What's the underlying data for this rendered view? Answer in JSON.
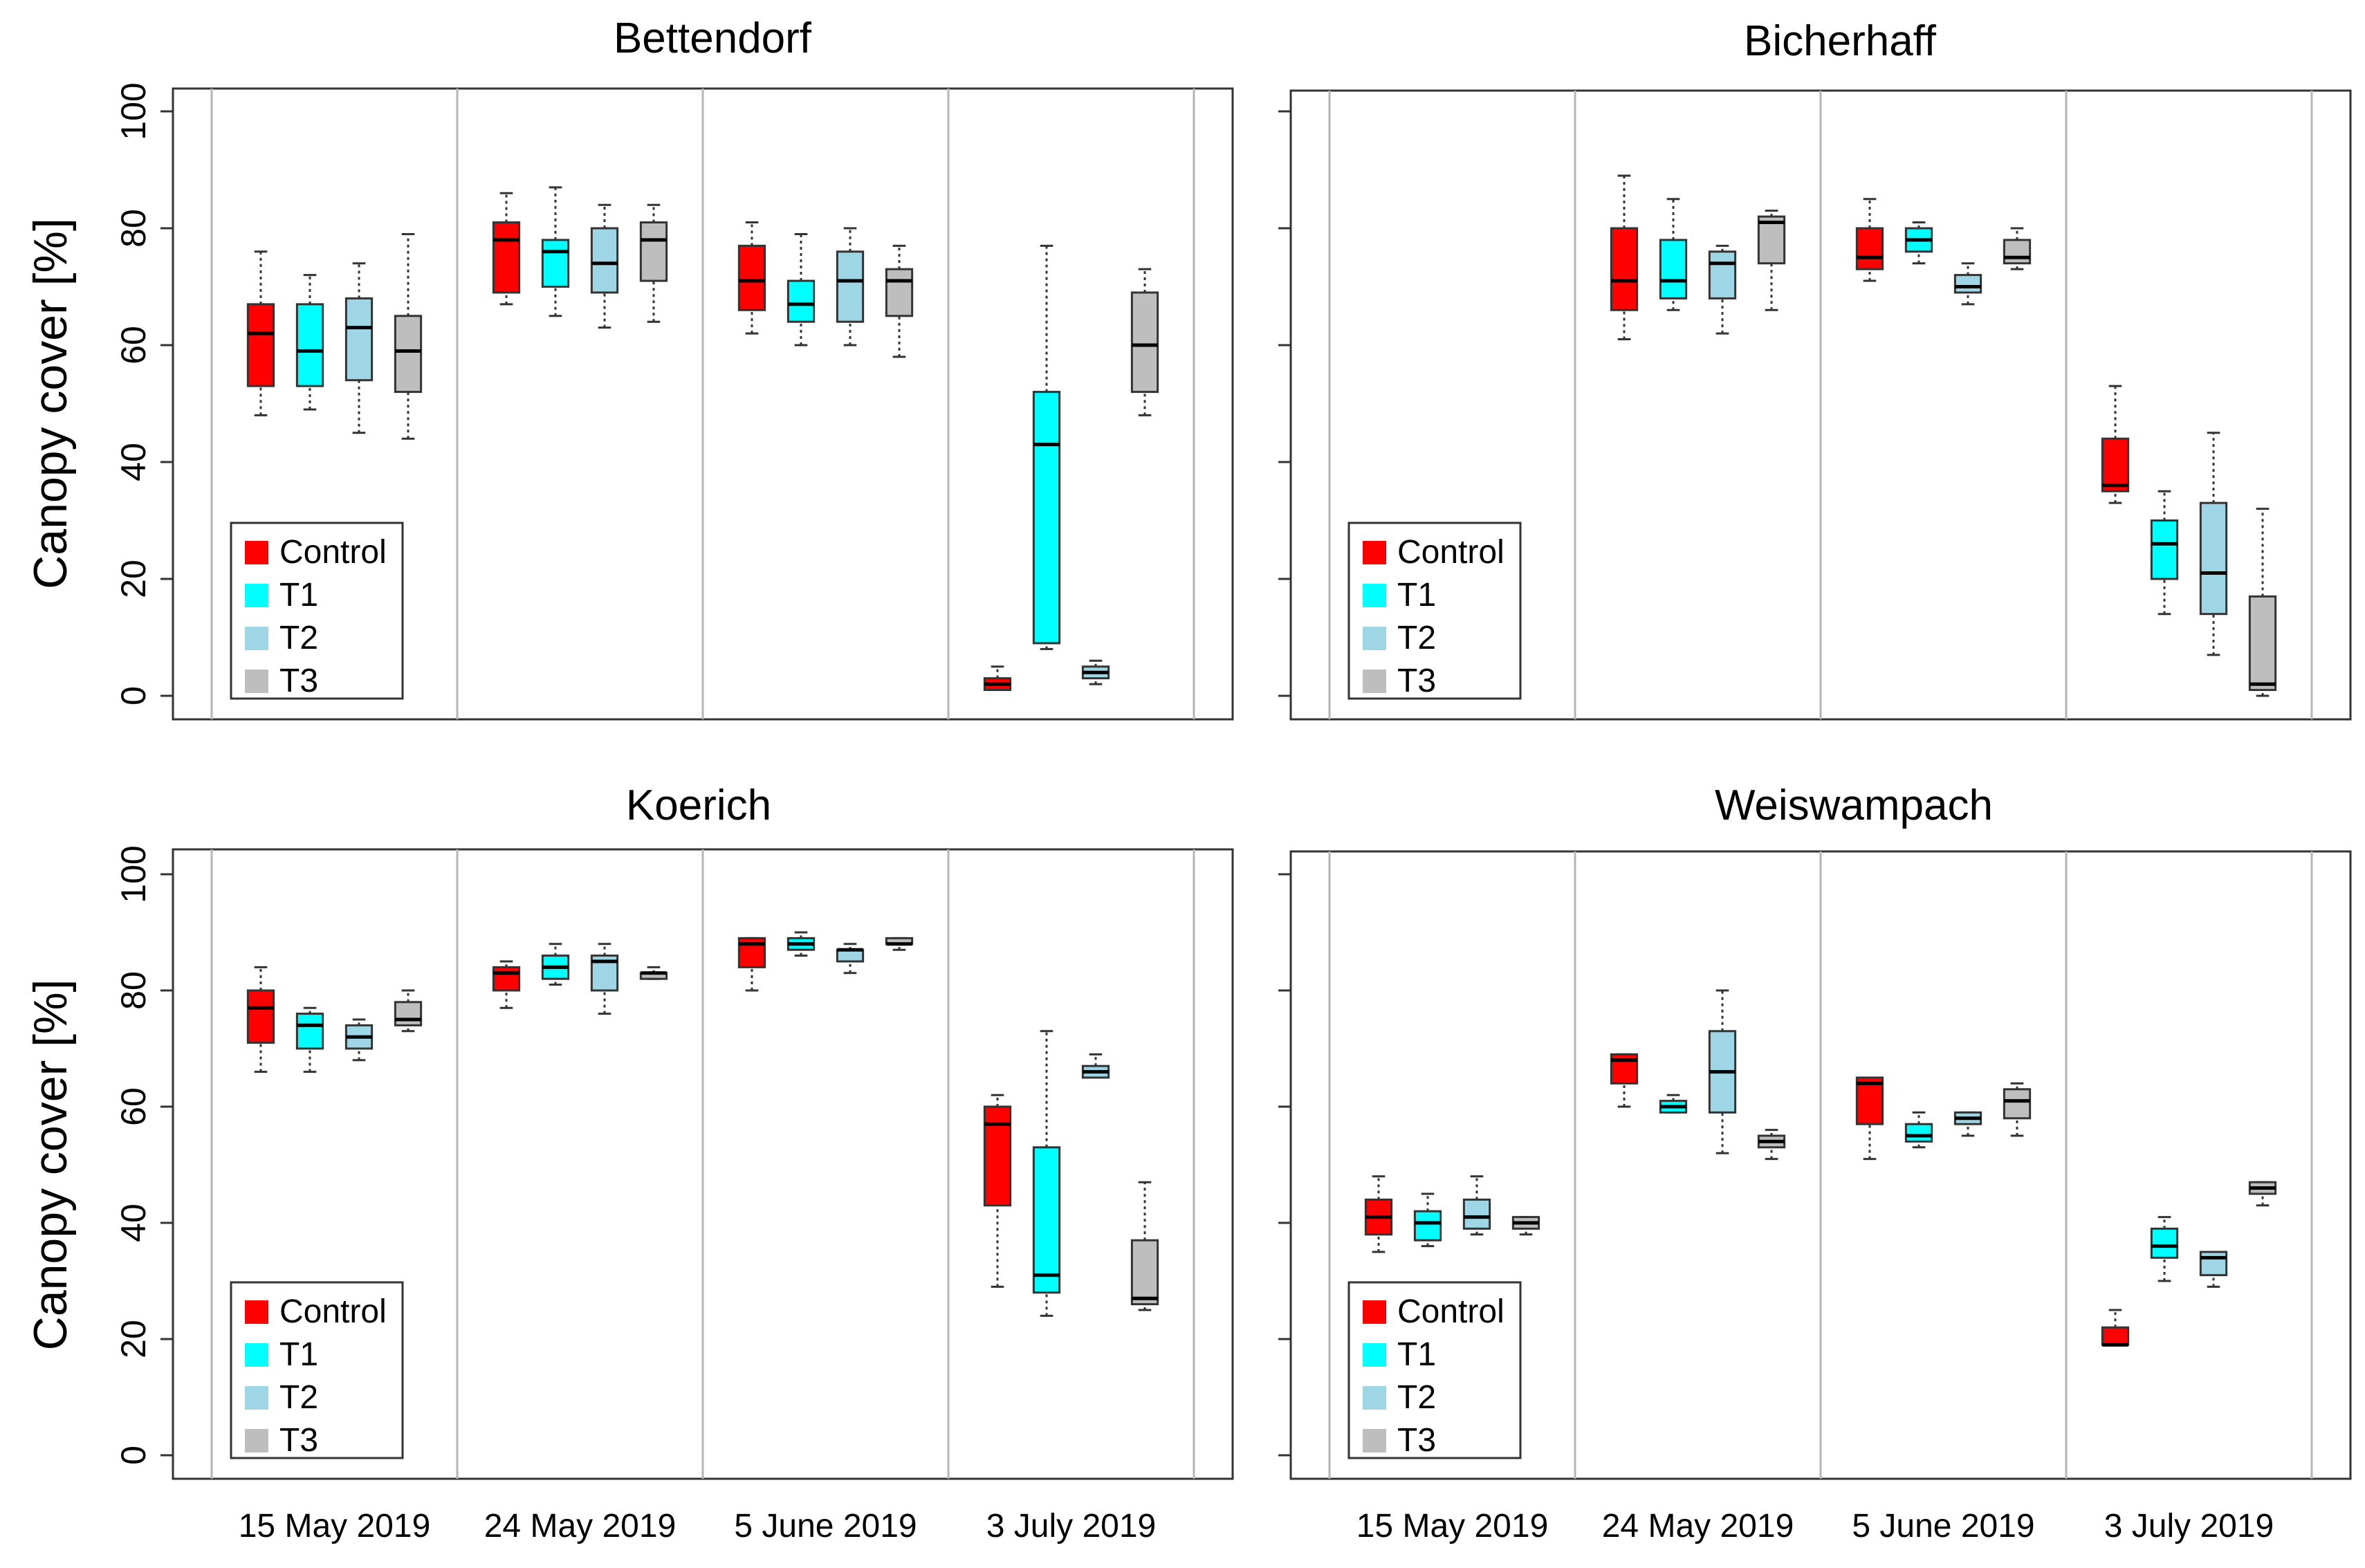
{
  "figure": {
    "ylabel": "Canopy cover [%]",
    "dates": [
      "15 May 2019",
      "24 May 2019",
      "5 June 2019",
      "3 July 2019"
    ],
    "yticks": [
      "0",
      "20",
      "40",
      "60",
      "80",
      "100"
    ],
    "treatments": [
      "Control",
      "T1",
      "T2",
      "T3"
    ],
    "colors": {
      "Control": "#ff0000",
      "T1": "#00ffff",
      "T2": "#9fd6e6",
      "T3": "#bebebe"
    }
  },
  "chart_data": [
    {
      "type": "box",
      "title": "Bettendorf",
      "ylabel": "Canopy cover [%]",
      "ylim": [
        0,
        100
      ],
      "categories": [
        "15 May 2019",
        "24 May 2019",
        "5 June 2019",
        "3 July 2019"
      ],
      "legend": {
        "position": "bottom-left",
        "entries": [
          "Control",
          "T1",
          "T2",
          "T3"
        ]
      },
      "series": [
        {
          "name": "Control",
          "boxes": [
            [
              48,
              53,
              62,
              67,
              76
            ],
            [
              67,
              69,
              78,
              81,
              86
            ],
            [
              62,
              66,
              71,
              77,
              81
            ],
            [
              1,
              1,
              2,
              3,
              5
            ]
          ]
        },
        {
          "name": "T1",
          "boxes": [
            [
              49,
              53,
              59,
              67,
              72
            ],
            [
              65,
              70,
              76,
              78,
              87
            ],
            [
              60,
              64,
              67,
              71,
              79
            ],
            [
              8,
              9,
              43,
              52,
              77
            ]
          ]
        },
        {
          "name": "T2",
          "boxes": [
            [
              45,
              54,
              63,
              68,
              74
            ],
            [
              63,
              69,
              74,
              80,
              84
            ],
            [
              60,
              64,
              71,
              76,
              80
            ],
            [
              2,
              3,
              4,
              5,
              6
            ]
          ]
        },
        {
          "name": "T3",
          "boxes": [
            [
              44,
              52,
              59,
              65,
              79
            ],
            [
              64,
              71,
              78,
              81,
              84
            ],
            [
              58,
              65,
              71,
              73,
              77
            ],
            [
              48,
              52,
              60,
              69,
              73
            ]
          ]
        }
      ]
    },
    {
      "type": "box",
      "title": "Bicherhaff",
      "ylabel": "",
      "ylim": [
        0,
        100
      ],
      "categories": [
        "15 May 2019",
        "24 May 2019",
        "5 June 2019",
        "3 July 2019"
      ],
      "legend": {
        "position": "bottom-left",
        "entries": [
          "Control",
          "T1",
          "T2",
          "T3"
        ]
      },
      "series": [
        {
          "name": "Control",
          "boxes": [
            null,
            [
              61,
              66,
              71,
              80,
              89
            ],
            [
              71,
              73,
              75,
              80,
              85
            ],
            [
              33,
              35,
              36,
              44,
              53
            ]
          ]
        },
        {
          "name": "T1",
          "boxes": [
            null,
            [
              66,
              68,
              71,
              78,
              85
            ],
            [
              74,
              76,
              78,
              80,
              81
            ],
            [
              14,
              20,
              26,
              30,
              35
            ]
          ]
        },
        {
          "name": "T2",
          "boxes": [
            null,
            [
              62,
              68,
              74,
              76,
              77
            ],
            [
              67,
              69,
              70,
              72,
              74
            ],
            [
              7,
              14,
              21,
              33,
              45
            ]
          ]
        },
        {
          "name": "T3",
          "boxes": [
            null,
            [
              66,
              74,
              81,
              82,
              83
            ],
            [
              73,
              74,
              75,
              78,
              80
            ],
            [
              0,
              1,
              2,
              17,
              32
            ]
          ]
        }
      ]
    },
    {
      "type": "box",
      "title": "Koerich",
      "ylabel": "Canopy cover [%]",
      "ylim": [
        0,
        100
      ],
      "categories": [
        "15 May 2019",
        "24 May 2019",
        "5 June 2019",
        "3 July 2019"
      ],
      "legend": {
        "position": "bottom-left",
        "entries": [
          "Control",
          "T1",
          "T2",
          "T3"
        ]
      },
      "series": [
        {
          "name": "Control",
          "boxes": [
            [
              66,
              71,
              77,
              80,
              84
            ],
            [
              77,
              80,
              83,
              84,
              85
            ],
            [
              80,
              84,
              88,
              89,
              89
            ],
            [
              29,
              43,
              57,
              60,
              62
            ]
          ]
        },
        {
          "name": "T1",
          "boxes": [
            [
              66,
              70,
              74,
              76,
              77
            ],
            [
              81,
              82,
              84,
              86,
              88
            ],
            [
              86,
              87,
              88,
              89,
              90
            ],
            [
              24,
              28,
              31,
              53,
              73
            ]
          ]
        },
        {
          "name": "T2",
          "boxes": [
            [
              68,
              70,
              72,
              74,
              75
            ],
            [
              76,
              80,
              85,
              86,
              88
            ],
            [
              83,
              85,
              87,
              87,
              88
            ],
            [
              65,
              65,
              66,
              67,
              69
            ]
          ]
        },
        {
          "name": "T3",
          "boxes": [
            [
              73,
              74,
              75,
              78,
              80
            ],
            [
              82,
              82,
              83,
              83,
              84
            ],
            [
              87,
              88,
              88,
              89,
              89
            ],
            [
              25,
              26,
              27,
              37,
              47
            ]
          ]
        }
      ]
    },
    {
      "type": "box",
      "title": "Weiswampach",
      "ylabel": "",
      "ylim": [
        0,
        100
      ],
      "categories": [
        "15 May 2019",
        "24 May 2019",
        "5 June 2019",
        "3 July 2019"
      ],
      "legend": {
        "position": "bottom-left",
        "entries": [
          "Control",
          "T1",
          "T2",
          "T3"
        ]
      },
      "series": [
        {
          "name": "Control",
          "boxes": [
            [
              35,
              38,
              41,
              44,
              48
            ],
            [
              60,
              64,
              68,
              69,
              69
            ],
            [
              51,
              57,
              64,
              65,
              65
            ],
            [
              19,
              19,
              19,
              22,
              25
            ]
          ]
        },
        {
          "name": "T1",
          "boxes": [
            [
              36,
              37,
              40,
              42,
              45
            ],
            [
              59,
              59,
              60,
              61,
              62
            ],
            [
              53,
              54,
              55,
              57,
              59
            ],
            [
              30,
              34,
              36,
              39,
              41
            ]
          ]
        },
        {
          "name": "T2",
          "boxes": [
            [
              38,
              39,
              41,
              44,
              48
            ],
            [
              52,
              59,
              66,
              73,
              80
            ],
            [
              55,
              57,
              58,
              59,
              59
            ],
            [
              29,
              31,
              34,
              35,
              35
            ]
          ]
        },
        {
          "name": "T3",
          "boxes": [
            [
              38,
              39,
              40,
              41,
              41
            ],
            [
              51,
              53,
              54,
              55,
              56
            ],
            [
              55,
              58,
              61,
              63,
              64
            ],
            [
              43,
              45,
              46,
              47,
              47
            ]
          ]
        }
      ]
    }
  ]
}
